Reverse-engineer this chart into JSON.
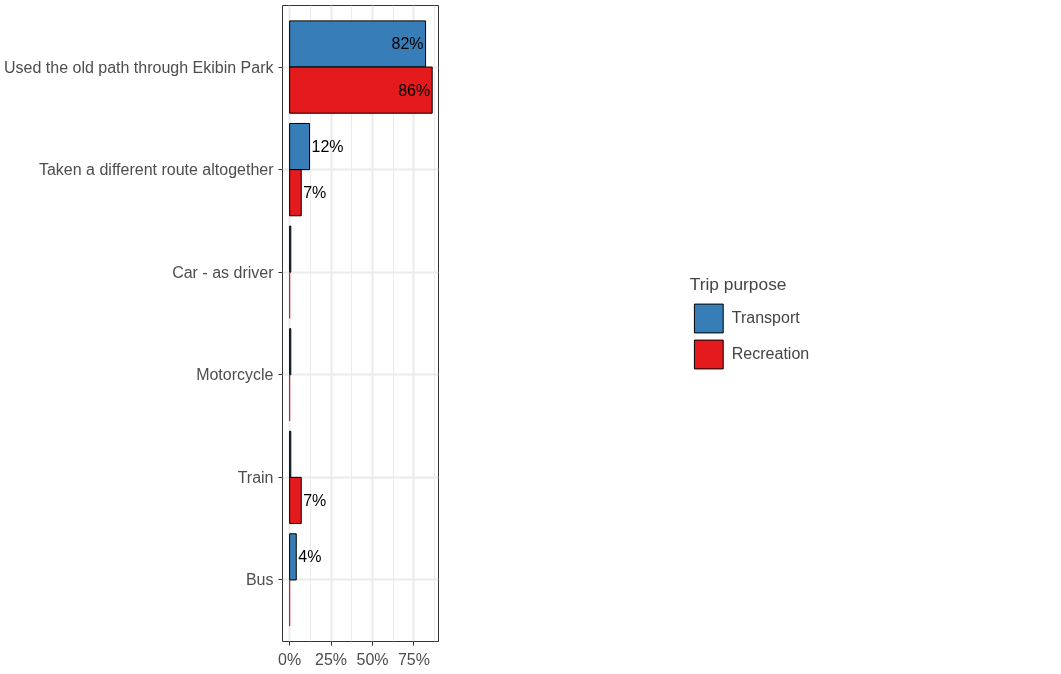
{
  "chart_data": {
    "type": "bar",
    "orientation": "horizontal",
    "categories": [
      "Used the old path through Ekibin Park",
      "Taken a different route altogether",
      "Car - as driver",
      "Motorcycle",
      "Train",
      "Bus"
    ],
    "series": [
      {
        "name": "Transport",
        "color": "#377eb8",
        "values": [
          82,
          12,
          0.7,
          0.7,
          0.7,
          4
        ],
        "value_labels": [
          "82%",
          "12%",
          null,
          null,
          null,
          "4%"
        ]
      },
      {
        "name": "Recreation",
        "color": "#e41a1c",
        "values": [
          86,
          7,
          0,
          0,
          7,
          0
        ],
        "value_labels": [
          "86%",
          "7%",
          null,
          null,
          "7%",
          null
        ]
      }
    ],
    "xlim": [
      -4.3,
      89.8
    ],
    "xticks": [
      {
        "value": 0,
        "label": "0%"
      },
      {
        "value": 25,
        "label": "25%"
      },
      {
        "value": 50,
        "label": "50%"
      },
      {
        "value": 75,
        "label": "75%"
      }
    ],
    "grid": true,
    "legend": "right",
    "legend_title": "Trip purpose"
  }
}
